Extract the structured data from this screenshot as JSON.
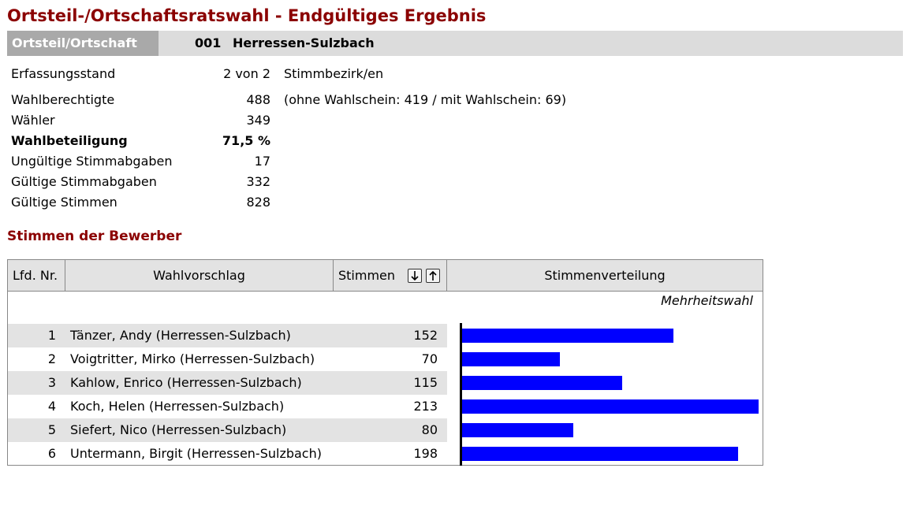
{
  "title": "Ortsteil-/Ortschaftsratswahl - Endgültiges Ergebnis",
  "header": {
    "label": "Ortsteil/Ortschaft",
    "code": "001",
    "name": "Herressen-Sulzbach"
  },
  "stats": {
    "erfassung": {
      "label": "Erfassungsstand",
      "value": "2 von 2",
      "note": "Stimmbezirk/en"
    },
    "wahlberechtigte": {
      "label": "Wahlberechtigte",
      "value": "488",
      "note": "(ohne Wahlschein: 419 / mit Wahlschein: 69)"
    },
    "waehler": {
      "label": "Wähler",
      "value": "349"
    },
    "wahlbeteiligung": {
      "label": "Wahlbeteiligung",
      "value": "71,5 %"
    },
    "ungueltige": {
      "label": "Ungültige Stimmabgaben",
      "value": "17"
    },
    "gueltige_abgaben": {
      "label": "Gültige Stimmabgaben",
      "value": "332"
    },
    "gueltige_stimmen": {
      "label": "Gültige Stimmen",
      "value": "828"
    }
  },
  "section_title": "Stimmen der Bewerber",
  "table": {
    "columns": {
      "lfd": "Lfd. Nr.",
      "wahlvorschlag": "Wahlvorschlag",
      "stimmen": "Stimmen",
      "verteilung": "Stimmenverteilung"
    },
    "method": "Mehrheitswahl",
    "sort_icons": [
      "sort-descending-icon",
      "sort-ascending-icon"
    ],
    "rows": [
      {
        "nr": "1",
        "name": "Tänzer, Andy (Herressen-Sulzbach)",
        "votes": "152"
      },
      {
        "nr": "2",
        "name": "Voigtritter, Mirko (Herressen-Sulzbach)",
        "votes": "70"
      },
      {
        "nr": "3",
        "name": "Kahlow, Enrico (Herressen-Sulzbach)",
        "votes": "115"
      },
      {
        "nr": "4",
        "name": "Koch, Helen (Herressen-Sulzbach)",
        "votes": "213"
      },
      {
        "nr": "5",
        "name": "Siefert, Nico (Herressen-Sulzbach)",
        "votes": "80"
      },
      {
        "nr": "6",
        "name": "Untermann, Birgit (Herressen-Sulzbach)",
        "votes": "198"
      }
    ]
  },
  "colors": {
    "title": "#8b0000",
    "bar": "#0000ff",
    "header_label_bg": "#a9a9a9",
    "row_shade": "#e3e3e3"
  },
  "chart_data": {
    "type": "bar",
    "orientation": "horizontal",
    "categories": [
      "Tänzer, Andy",
      "Voigtritter, Mirko",
      "Kahlow, Enrico",
      "Koch, Helen",
      "Siefert, Nico",
      "Untermann, Birgit"
    ],
    "values": [
      152,
      70,
      115,
      213,
      80,
      198
    ]
  }
}
